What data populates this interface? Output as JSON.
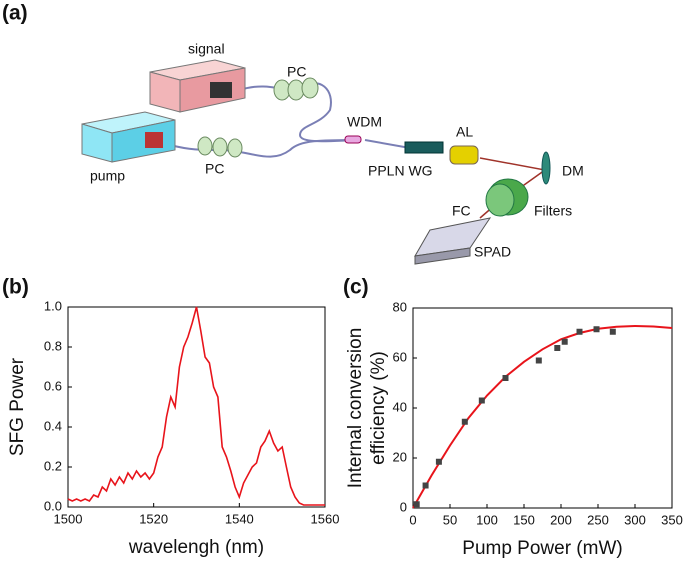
{
  "panel_a": {
    "panel_label": "(a)",
    "labels": [
      "signal",
      "PC",
      "pump",
      "PC",
      "WDM",
      "AL",
      "PPLN WG",
      "DM",
      "FC",
      "Filters",
      "SPAD"
    ]
  },
  "chart_data": [
    {
      "type": "line",
      "panel_label": "(b)",
      "xlabel": "wavelengh (nm)",
      "ylabel": "SFG Power",
      "color": "#e8141b",
      "x": [
        1500,
        1501,
        1502,
        1503,
        1504,
        1505,
        1506,
        1507,
        1508,
        1509,
        1510,
        1511,
        1512,
        1513,
        1514,
        1515,
        1516,
        1517,
        1518,
        1519,
        1520,
        1521,
        1522,
        1523,
        1524,
        1525,
        1526,
        1527,
        1528,
        1529,
        1530,
        1531,
        1532,
        1533,
        1534,
        1535,
        1536,
        1537,
        1538,
        1539,
        1540,
        1541,
        1542,
        1543,
        1544,
        1545,
        1546,
        1547,
        1548,
        1549,
        1550,
        1551,
        1552,
        1553,
        1554,
        1555,
        1556,
        1557,
        1558,
        1559,
        1560
      ],
      "values": [
        0.04,
        0.03,
        0.04,
        0.03,
        0.04,
        0.03,
        0.06,
        0.05,
        0.1,
        0.08,
        0.14,
        0.11,
        0.15,
        0.12,
        0.17,
        0.14,
        0.18,
        0.15,
        0.17,
        0.14,
        0.17,
        0.25,
        0.3,
        0.45,
        0.55,
        0.5,
        0.7,
        0.8,
        0.85,
        0.92,
        1.0,
        0.88,
        0.75,
        0.72,
        0.6,
        0.55,
        0.3,
        0.25,
        0.18,
        0.1,
        0.05,
        0.12,
        0.16,
        0.2,
        0.22,
        0.3,
        0.33,
        0.38,
        0.32,
        0.28,
        0.3,
        0.2,
        0.1,
        0.05,
        0.02,
        0.01,
        0.01,
        0.01,
        0.01,
        0.01,
        0.01
      ],
      "xlim": [
        1500,
        1560
      ],
      "xticks": [
        1500,
        1520,
        1540,
        1560
      ],
      "ylim": [
        0,
        1
      ],
      "yticks": [
        {
          "value": 0,
          "label": "0.0"
        },
        0.2,
        0.4,
        0.6,
        0.8,
        {
          "value": 1,
          "label": "1.0"
        }
      ]
    },
    {
      "type": "scatter",
      "panel_label": "(c)",
      "xlabel": "Pump Power (mW)",
      "ylabel": [
        "Internal conversion",
        "efficiency (%)"
      ],
      "color": "#444444",
      "x": [
        5,
        17,
        35,
        70,
        93,
        125,
        170,
        195,
        205,
        225,
        248,
        270
      ],
      "values": [
        1.5,
        9,
        18.5,
        34.5,
        43,
        52,
        59,
        64,
        66.5,
        70.5,
        71.5,
        70.5
      ],
      "fit": {
        "color": "#e8141b",
        "x": [
          0,
          25,
          50,
          75,
          100,
          125,
          150,
          175,
          200,
          225,
          250,
          275,
          300,
          325,
          350
        ],
        "values": [
          0,
          13,
          25,
          36,
          45,
          52.5,
          58.5,
          63.5,
          67.5,
          70,
          71.7,
          72.5,
          72.8,
          72.6,
          72
        ]
      },
      "xlim": [
        0,
        350
      ],
      "xticks": [
        0,
        50,
        100,
        150,
        200,
        250,
        300,
        350
      ],
      "ylim": [
        0,
        80
      ],
      "yticks": [
        0,
        20,
        40,
        60,
        80
      ]
    }
  ]
}
